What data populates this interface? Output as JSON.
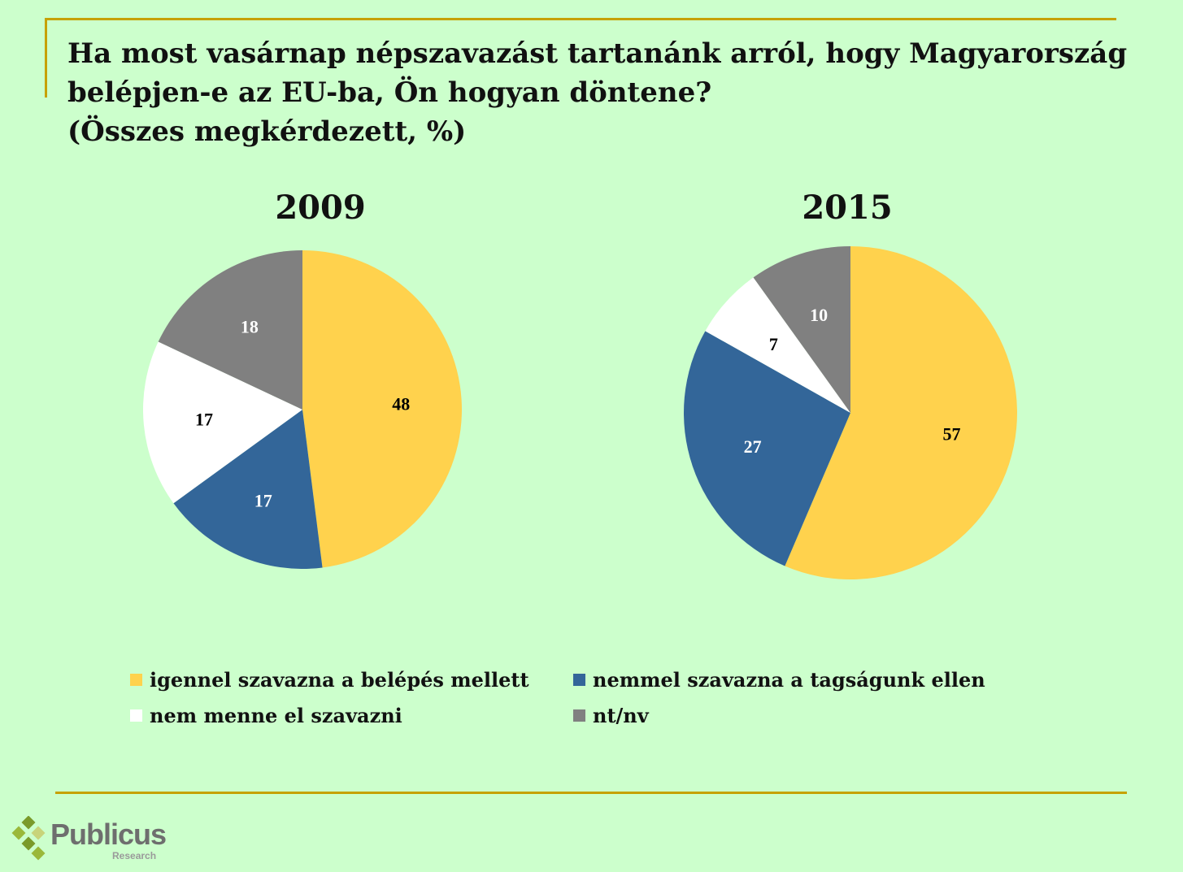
{
  "title": {
    "line1": "Ha most vasárnap népszavazást tartanánk arról, hogy Magyarország",
    "line2": "belépjen-e az EU-ba, Ön hogyan döntene?",
    "line3": "(Összes megkérdezett, %)"
  },
  "chart_data": [
    {
      "type": "pie",
      "title": "2009",
      "categories": [
        "igennel szavazna a belépés mellett",
        "nemmel szavazna a tagságunk ellen",
        "nem menne el szavazni",
        "nt/nv"
      ],
      "values": [
        48,
        17,
        17,
        18
      ],
      "value_labels": [
        "48",
        "17",
        "17",
        "18"
      ],
      "colors": [
        "#ffd24d",
        "#336699",
        "#ffffff",
        "#808080"
      ],
      "label_colors": [
        "#000000",
        "#ffffff",
        "#000000",
        "#ffffff"
      ]
    },
    {
      "type": "pie",
      "title": "2015",
      "categories": [
        "igennel szavazna a belépés mellett",
        "nemmel szavazna a tagságunk ellen",
        "nem menne el szavazni",
        "nt/nv"
      ],
      "values": [
        57,
        27,
        7,
        10
      ],
      "value_labels": [
        "57",
        "27",
        "7",
        "10"
      ],
      "colors": [
        "#ffd24d",
        "#336699",
        "#ffffff",
        "#808080"
      ],
      "label_colors": [
        "#000000",
        "#ffffff",
        "#000000",
        "#ffffff"
      ]
    }
  ],
  "legend": {
    "items": [
      {
        "label": "igennel szavazna a belépés mellett",
        "color": "#ffd24d"
      },
      {
        "label": "nemmel szavazna a tagságunk ellen",
        "color": "#336699"
      },
      {
        "label": "nem menne el szavazni",
        "color": "#ffffff"
      },
      {
        "label": "nt/nv",
        "color": "#808080"
      }
    ]
  },
  "logo": {
    "name": "Publicus",
    "subtitle": "Research",
    "colors": [
      "#7a9a2a",
      "#9ab83a",
      "#c8d47a"
    ]
  }
}
